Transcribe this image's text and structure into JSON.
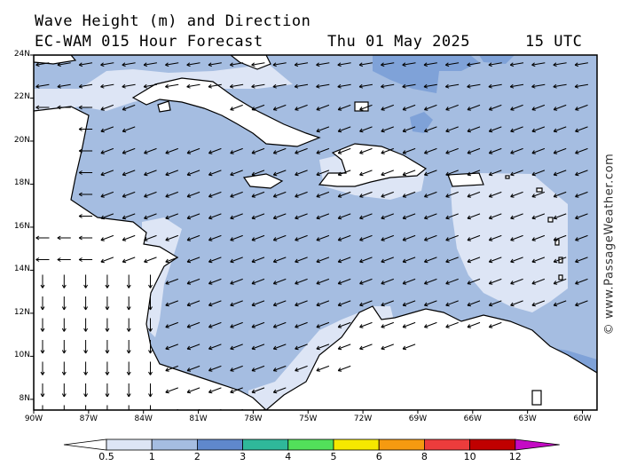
{
  "header": {
    "title": "Wave Height (m) and Direction",
    "model": "EC-WAM 015 Hour Forecast",
    "date": "Thu 01 May 2025",
    "time": "15 UTC"
  },
  "watermark": "© www.PassageWeather.com",
  "map": {
    "lat_range": [
      7.5,
      24
    ],
    "lon_range": [
      -90,
      -59.2
    ],
    "lat_labels": [
      "24N",
      "22N",
      "20N",
      "18N",
      "16N",
      "14N",
      "12N",
      "10N",
      "8N"
    ],
    "lon_labels": [
      "90W",
      "87W",
      "84W",
      "81W",
      "78W",
      "75W",
      "72W",
      "69W",
      "66W",
      "63W",
      "60W"
    ],
    "dominant_wave_direction": "from east-northeast (arrows pointing west-southwest)",
    "dominant_wave_height_band": "1 - 2 m"
  },
  "colorbar": {
    "levels": [
      "0.5",
      "1",
      "2",
      "3",
      "4",
      "5",
      "6",
      "8",
      "10",
      "12"
    ],
    "colors": [
      "#dde5f5",
      "#a5bde1",
      "#5f88cc",
      "#2fb89a",
      "#52e05a",
      "#f5e800",
      "#f59a10",
      "#ec3c3c",
      "#c00000",
      "#c40ac4"
    ],
    "low_end_color": "#ffffff"
  }
}
